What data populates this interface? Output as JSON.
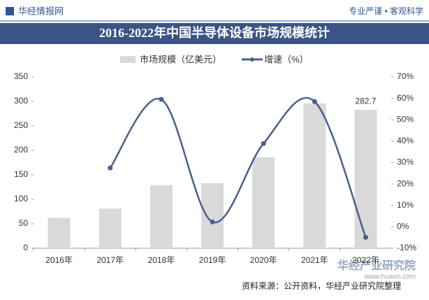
{
  "header": {
    "brand": "华经情报网",
    "slogan": "专业严谨 • 客观科学"
  },
  "chart_data": {
    "type": "bar-line",
    "title": "2016-2022年中国半导体设备市场规模统计",
    "categories": [
      "2016年",
      "2017年",
      "2018年",
      "2019年",
      "2020年",
      "2021年",
      "2022年"
    ],
    "series": [
      {
        "name": "市场规模（亿美元）",
        "type": "bar",
        "color": "#d9d9d9",
        "values": [
          62,
          81,
          129,
          133,
          186,
          296,
          282.7
        ],
        "value_labels": [
          null,
          null,
          null,
          null,
          null,
          null,
          "282.7"
        ]
      },
      {
        "name": "增速（%）",
        "type": "line",
        "axis": "y2",
        "color": "#4a5f8c",
        "values": [
          null,
          27.5,
          59.5,
          2.3,
          38.9,
          58.5,
          -4.9
        ]
      }
    ],
    "ylim": [
      0,
      350
    ],
    "yticks": [
      0,
      50,
      100,
      150,
      200,
      250,
      300,
      350
    ],
    "y2lim": [
      -10,
      70
    ],
    "y2ticks": [
      {
        "value": -10,
        "label": "-10%"
      },
      {
        "value": 0,
        "label": "0%"
      },
      {
        "value": 10,
        "label": "10%"
      },
      {
        "value": 20,
        "label": "20%"
      },
      {
        "value": 30,
        "label": "30%"
      },
      {
        "value": 40,
        "label": "40%"
      },
      {
        "value": 50,
        "label": "50%"
      },
      {
        "value": 60,
        "label": "60%"
      },
      {
        "value": 70,
        "label": "70%"
      }
    ],
    "legend": "top",
    "source": "资料来源：公开资料，华经产业研究院整理"
  },
  "logo": {
    "name": "华经产业研究院",
    "url": "www.huaon.com"
  }
}
